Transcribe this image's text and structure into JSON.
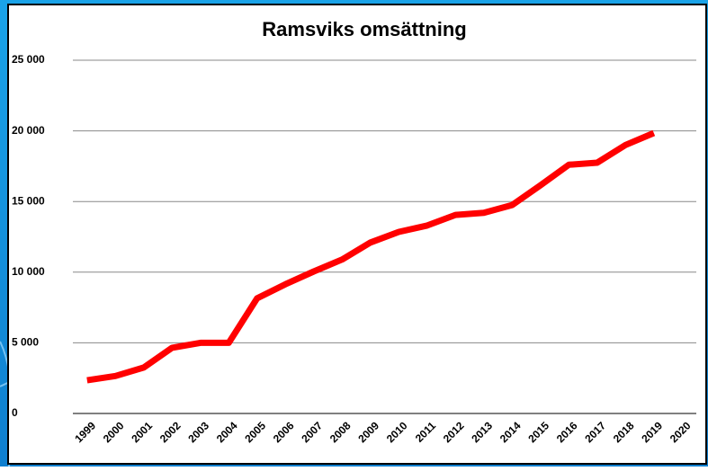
{
  "chart_data": {
    "type": "line",
    "title": "Ramsviks omsättning",
    "categories": [
      "1999",
      "2000",
      "2001",
      "2002",
      "2003",
      "2004",
      "2005",
      "2006",
      "2007",
      "2008",
      "2009",
      "2010",
      "2011",
      "2012",
      "2013",
      "2014",
      "2015",
      "2016",
      "2017",
      "2018",
      "2019",
      "2020"
    ],
    "series": [
      {
        "color": "#ff0000",
        "values": [
          2350,
          2650,
          3250,
          4650,
          5000,
          5000,
          8150,
          9150,
          10050,
          10900,
          12100,
          12850,
          13300,
          14050,
          14200,
          14750,
          16150,
          17600,
          17750,
          19000,
          19850,
          null
        ]
      }
    ],
    "ylim": [
      0,
      25000
    ],
    "yticks": [
      0,
      {
        "value": 5000,
        "label": "5 000"
      },
      {
        "value": 10000,
        "label": "10 000"
      },
      {
        "value": 15000,
        "label": "15 000"
      },
      {
        "value": 20000,
        "label": "20 000"
      },
      {
        "value": 25000,
        "label": "25 000"
      }
    ],
    "grid": true
  }
}
